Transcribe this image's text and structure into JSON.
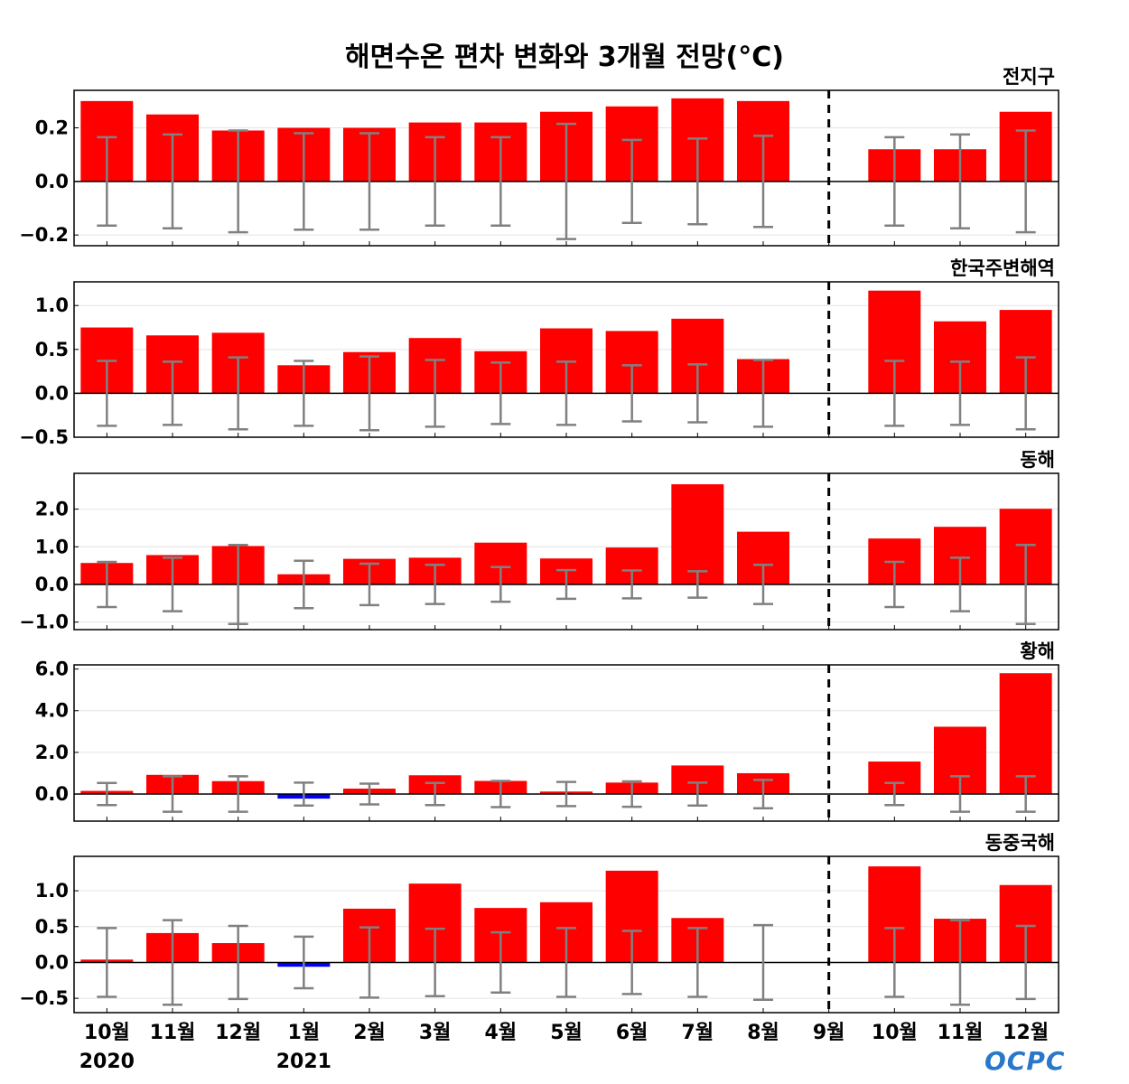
{
  "title": "해면수온 편차 변화와 3개월 전망(°C)",
  "logo_text": "OCPC",
  "colors": {
    "positive": "#ff0000",
    "negative": "#0000ff",
    "error_bar": "#808080"
  },
  "chart_data": {
    "type": "bar",
    "categories": [
      "10월",
      "11월",
      "12월",
      "1월",
      "2월",
      "3월",
      "4월",
      "5월",
      "6월",
      "7월",
      "8월",
      "9월",
      "10월",
      "11월",
      "12월"
    ],
    "year_labels": [
      {
        "index": 0,
        "text": "2020"
      },
      {
        "index": 3,
        "text": "2021"
      }
    ],
    "divider_after_index": 11,
    "panels": [
      {
        "title": "전지구",
        "ylim": [
          -0.24,
          0.34
        ],
        "yticks": [
          -0.2,
          0.0,
          0.2
        ],
        "tick_labels": [
          "−0.2",
          "0.0",
          "0.2"
        ],
        "values": [
          0.3,
          0.25,
          0.19,
          0.2,
          0.2,
          0.22,
          0.22,
          0.26,
          0.28,
          0.31,
          0.3,
          null,
          0.12,
          0.12,
          0.26
        ],
        "error": [
          0.165,
          0.175,
          0.19,
          0.18,
          0.18,
          0.165,
          0.165,
          0.215,
          0.155,
          0.16,
          0.17,
          null,
          0.165,
          0.175,
          0.19
        ]
      },
      {
        "title": "한국주변해역",
        "ylim": [
          -0.5,
          1.27
        ],
        "yticks": [
          -0.5,
          0.0,
          0.5,
          1.0
        ],
        "tick_labels": [
          "−0.5",
          "0.0",
          "0.5",
          "1.0"
        ],
        "values": [
          0.75,
          0.66,
          0.69,
          0.32,
          0.47,
          0.63,
          0.48,
          0.74,
          0.71,
          0.85,
          0.39,
          null,
          1.17,
          0.82,
          0.95
        ],
        "error": [
          0.37,
          0.36,
          0.41,
          0.37,
          0.42,
          0.38,
          0.35,
          0.36,
          0.32,
          0.33,
          0.38,
          null,
          0.37,
          0.36,
          0.41
        ]
      },
      {
        "title": "동해",
        "ylim": [
          -1.2,
          2.95
        ],
        "yticks": [
          -1.0,
          0.0,
          1.0,
          2.0
        ],
        "tick_labels": [
          "−1.0",
          "0.0",
          "1.0",
          "2.0"
        ],
        "values": [
          0.57,
          0.78,
          1.02,
          0.27,
          0.68,
          0.71,
          1.11,
          0.69,
          0.98,
          2.66,
          1.4,
          null,
          1.22,
          1.53,
          2.01
        ],
        "error": [
          0.6,
          0.71,
          1.05,
          0.63,
          0.55,
          0.52,
          0.46,
          0.38,
          0.37,
          0.35,
          0.52,
          null,
          0.6,
          0.71,
          1.05
        ]
      },
      {
        "title": "황해",
        "ylim": [
          -1.3,
          6.2
        ],
        "yticks": [
          0.0,
          2.0,
          4.0,
          6.0
        ],
        "tick_labels": [
          "0.0",
          "2.0",
          "4.0",
          "6.0"
        ],
        "values": [
          0.15,
          0.92,
          0.62,
          -0.22,
          0.26,
          0.9,
          0.63,
          0.12,
          0.55,
          1.37,
          1.0,
          null,
          1.56,
          3.23,
          5.8
        ],
        "error": [
          0.53,
          0.85,
          0.85,
          0.55,
          0.5,
          0.53,
          0.63,
          0.58,
          0.61,
          0.55,
          0.68,
          null,
          0.53,
          0.85,
          0.85
        ]
      },
      {
        "title": "동중국해",
        "ylim": [
          -0.7,
          1.48
        ],
        "yticks": [
          -0.5,
          0.0,
          0.5,
          1.0
        ],
        "tick_labels": [
          "−0.5",
          "0.0",
          "0.5",
          "1.0"
        ],
        "values": [
          0.04,
          0.41,
          0.27,
          -0.06,
          0.75,
          1.1,
          0.76,
          0.84,
          1.28,
          0.62,
          null,
          null,
          1.34,
          0.61,
          1.08
        ],
        "error": [
          0.48,
          0.59,
          0.51,
          0.36,
          0.49,
          0.47,
          0.42,
          0.48,
          0.44,
          0.48,
          0.52,
          null,
          0.48,
          0.59,
          0.51
        ]
      }
    ]
  }
}
